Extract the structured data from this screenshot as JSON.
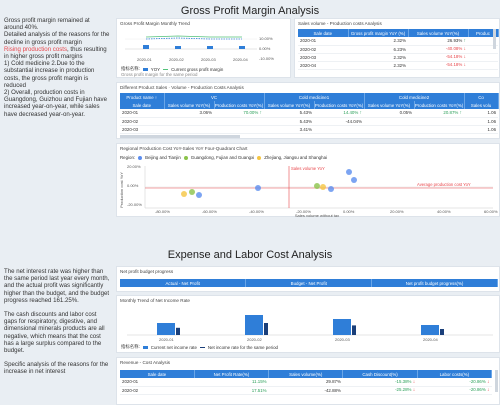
{
  "section1": {
    "title": "Gross Profit Margin Analysis",
    "text": {
      "p1": "Gross profit margin remained at around 40%.",
      "p2": "Detailed analysis of the reasons for the decline in gross profit margin",
      "p3_red": "Rising production costs",
      "p3_rest": ", thus resulting in higher gross profit margins",
      "p4": "1) Cold medicine 2.Due to the substantial increase in production costs, the gross profit margin is reduced",
      "p5": "2) Overall, production costs in Guangdong, Guizhou and Fujian have increased year-on-year, while sales have decreased year-on-year."
    },
    "trend": {
      "title": "Gross Profit Margin Monthly Trend",
      "categories": [
        "2020-01",
        "2020-02",
        "2020-03",
        "2020-04"
      ],
      "y_labels": [
        "10.00%",
        "0.00%",
        "-10.00%"
      ],
      "legend_label": "指标名称:",
      "legend_yoy": "YOY",
      "legend_current": "Current gross profit margin",
      "legend_cut": "Gross profit margin for the same period"
    },
    "volume_cost": {
      "title": "Sales volume - Production costs Analysis",
      "headers": [
        "Sale date",
        "Gross profit margin YoY (%)",
        "Sales volume YoY(%)",
        "Produc"
      ],
      "rows": [
        {
          "date": "2020-01",
          "gpm": "2.32%",
          "sv": "26.93%",
          "sv_up": true
        },
        {
          "date": "2020-02",
          "gpm": "6.23%",
          "sv": "-40.08%",
          "sv_up": false
        },
        {
          "date": "2020-03",
          "gpm": "2.32%",
          "sv": "-54.18%",
          "sv_up": false
        },
        {
          "date": "2020-04",
          "gpm": "2.32%",
          "sv": "-54.18%",
          "sv_up": false
        }
      ]
    },
    "product_sales": {
      "title": "Different Product Sales · Volume - Production Costs Analysis",
      "group_headers": [
        "Product name ↑",
        "VC",
        "Cold medicine1",
        "Cold medicine2",
        "Co"
      ],
      "sub_headers": [
        "Sale date",
        "Sales volume YoY(%)",
        "Production costs YoY(%)",
        "Sales volume YoY(%)",
        "Production costs YoY(%)",
        "Sales volume YoY(%)",
        "Production costs YoY(%)",
        "Sales volu"
      ],
      "rows": [
        {
          "date": "2020-01",
          "c1": "3.06%",
          "c2": "70.00%",
          "c2_up": true,
          "c3": "5.43%",
          "c4": "14.40%",
          "c4_up": true,
          "c5": "0.05%",
          "c6": "20.87%",
          "c6_up": true,
          "c7": "1.06"
        },
        {
          "date": "2020-02",
          "c1": "",
          "c2": "",
          "c2_up": null,
          "c3": "5.43%",
          "c4": "-44.04%",
          "c4_up": null,
          "c5": "",
          "c6": "",
          "c6_up": null,
          "c7": "1.06"
        },
        {
          "date": "2020-03",
          "c1": "",
          "c2": "",
          "c2_up": null,
          "c3": "3.41%",
          "c4": "",
          "c4_up": null,
          "c5": "",
          "c6": "",
          "c6_up": null,
          "c7": "1.06"
        }
      ]
    },
    "quadrant": {
      "title": "Regional Production Cost YoY-Sales YoY Four-Quadrant Chart",
      "region_label": "Region:",
      "legend": [
        "Beijing and Tianjin",
        "Guangdong, Fujian and Guangxi",
        "Zhejiang, Jiangsu and Shanghai"
      ],
      "legend_colors": [
        "#5b8def",
        "#8bc34a",
        "#f5c542"
      ],
      "ylabel": "Production cost YoY",
      "xlabel": "Sales volume without tax",
      "y_ticks": [
        "20.00%",
        "0.00%",
        "-20.00%"
      ],
      "x_ticks": [
        "-80.00%",
        "-60.00%",
        "-40.00%",
        "-20.00%",
        "0.00%",
        "20.00%",
        "40.00%",
        "60.00%"
      ],
      "h_label": "Average production cost YoY",
      "v_label": "Sales volume YoY"
    }
  },
  "section2": {
    "title": "Expense and Labor Cost Analysis",
    "text": {
      "p1": "The net interest rate was higher than the same period last year every month, and the actual profit was significantly higher than the budget, and the budget progress reached 161.25%.",
      "p2": "The cash discounts and labor cost gaps for respiratory, digestive, and dimensional minerals products are all negative, which means that the cost has a large surplus compared to the budget.",
      "p3": "Specific analysis of the reasons for the increase in net interest"
    },
    "budget": {
      "title": "Net profit budget progress",
      "headers": [
        "Actual - Net Profit",
        "Budget - Net Profit",
        "Net profit budget progress(%)"
      ]
    },
    "net_income": {
      "title": "Monthly Trend of Net Income Rate",
      "categories": [
        "2020-01",
        "2020-02",
        "2020-03",
        "2020-04"
      ],
      "legend_label": "指标名称:",
      "legend_current": "Current net income rate",
      "legend_same": "Net income rate for the same period"
    },
    "revenue_cost": {
      "title": "Revenue - Cost Analysis",
      "headers": [
        "Sale date",
        "Net Profit Rate(%)",
        "Sales volume(%)",
        "Cash Discount(%)",
        "Labor costs(%)"
      ],
      "rows": [
        {
          "date": "2020-01",
          "npr": "11.15%",
          "sv": "29.87%",
          "cd": "-15.38%",
          "cd_up": false,
          "lc": "-20.86%",
          "lc_up": false
        },
        {
          "date": "2020-02",
          "npr": "17.51%",
          "sv": "-42.88%",
          "cd": "-25.28%",
          "cd_up": false,
          "lc": "-20.86%",
          "lc_up": false
        }
      ]
    }
  },
  "colors": {
    "accent": "#2f7ed8",
    "red": "#e8464b",
    "green": "#2ca05a"
  }
}
